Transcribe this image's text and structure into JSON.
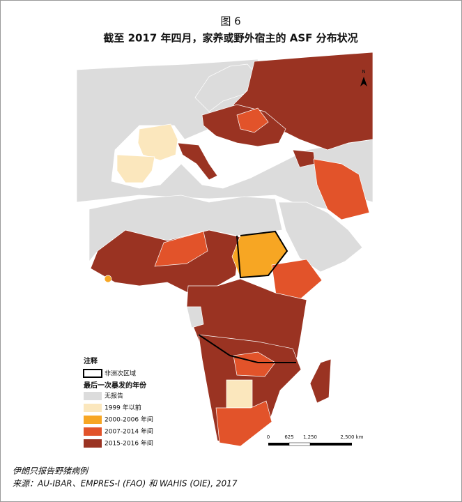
{
  "header": {
    "figure": "图 6",
    "title": "截至 2017 年四月，家养或野外宿主的 ASF 分布状况"
  },
  "legend": {
    "title": "注释",
    "outline_label": "非洲次区域",
    "subtitle": "最后一次暴发的年份",
    "items": [
      {
        "label": "无报告",
        "color": "#dcdcdc"
      },
      {
        "label": "1999 年以前",
        "color": "#fbe7bd"
      },
      {
        "label": "2000-2006 年间",
        "color": "#f7a623"
      },
      {
        "label": "2007-2014 年间",
        "color": "#e2532a"
      },
      {
        "label": "2015-2016 年间",
        "color": "#9a3322"
      }
    ]
  },
  "scale_bar": {
    "labels": [
      "0",
      "625",
      "1,250",
      "2,500 km"
    ]
  },
  "north": "N",
  "notes": {
    "note": "伊朗只报告野猪病例",
    "source": "来源：AU-IBAR、EMPRES-I (FAO) 和 WAHIS (OIE), 2017"
  }
}
